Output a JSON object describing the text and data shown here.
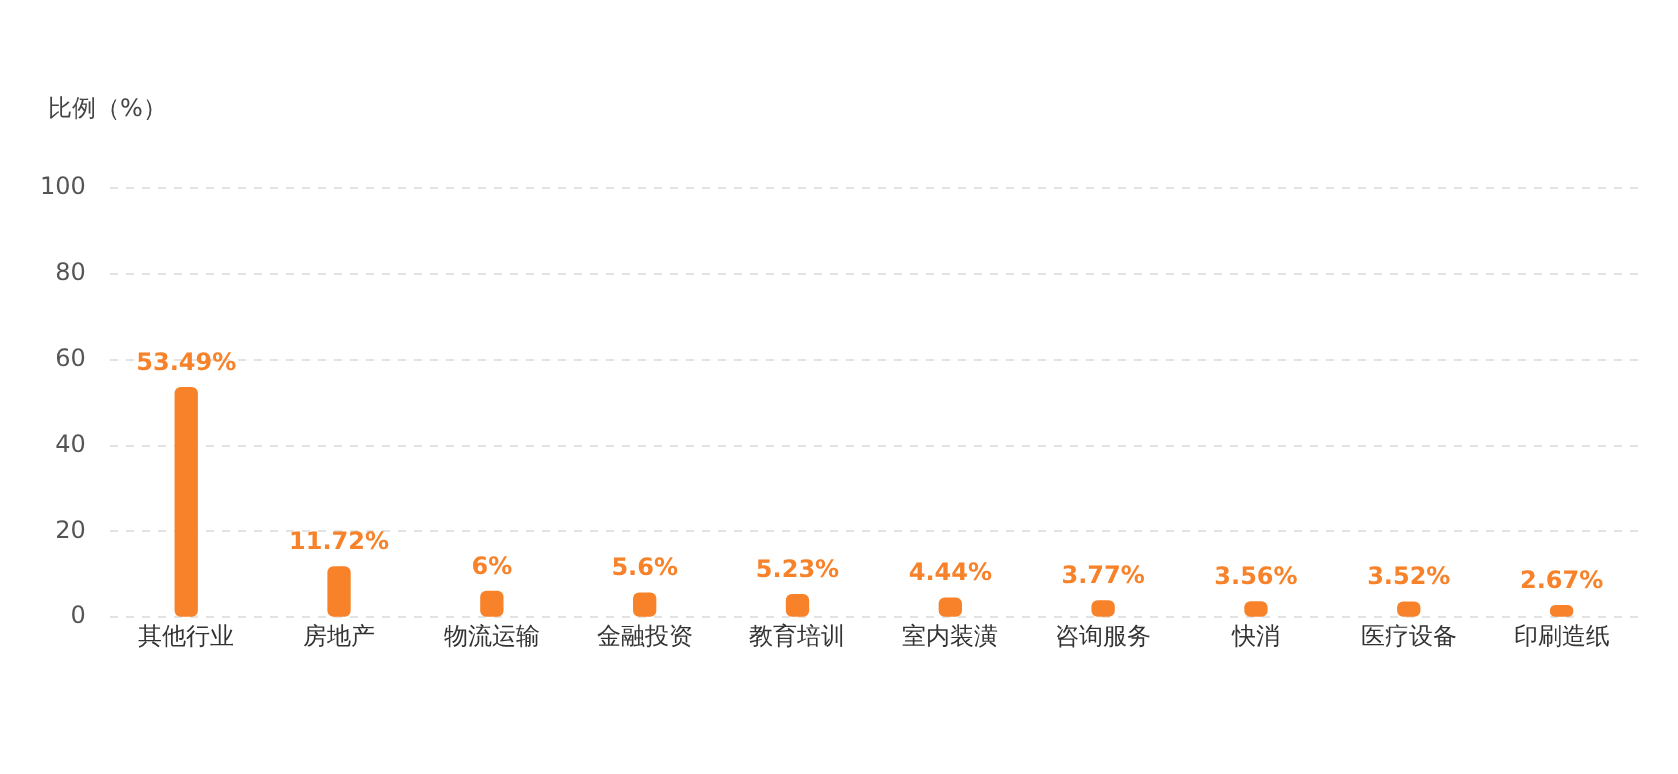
{
  "chart_data": {
    "type": "bar",
    "ylabel": "比例（%）",
    "categories": [
      "其他行业",
      "房地产",
      "物流运输",
      "金融投资",
      "教育培训",
      "室内装潢",
      "咨询服务",
      "快消",
      "医疗设备",
      "印刷造纸"
    ],
    "values": [
      53.49,
      11.72,
      6,
      5.6,
      5.23,
      4.44,
      3.77,
      3.56,
      3.52,
      2.67
    ],
    "value_labels": [
      "53.49%",
      "11.72%",
      "6%",
      "5.6%",
      "5.23%",
      "4.44%",
      "3.77%",
      "3.56%",
      "3.52%",
      "2.67%"
    ],
    "color": "#f7822a",
    "ylim": [
      0,
      100
    ],
    "yticks": [
      0,
      20,
      40,
      60,
      80,
      100
    ],
    "grid": "y",
    "legend": false
  }
}
